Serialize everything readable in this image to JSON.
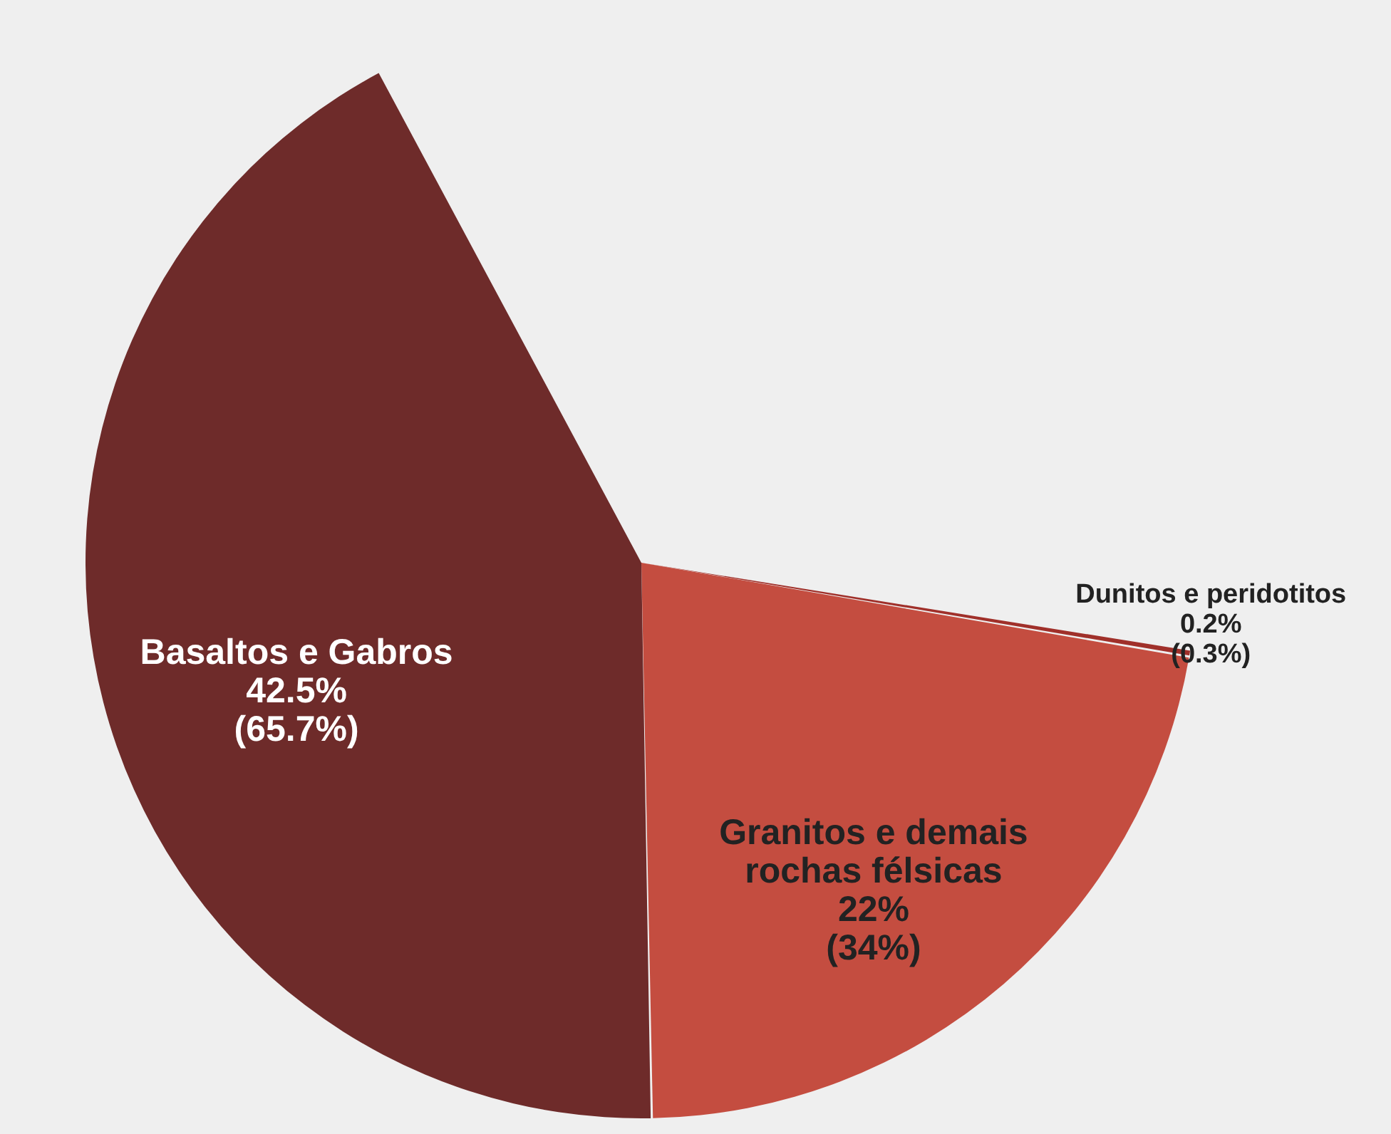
{
  "chart_data": {
    "type": "pie",
    "categories": [
      "Dunitos e peridotitos",
      "Granitos e  demais rochas félsicas",
      "Basaltos e Gabros"
    ],
    "values": [
      0.2,
      22,
      42.5
    ],
    "colors": [
      "#a0302a",
      "#c44d40",
      "#6e2b2a"
    ],
    "value_labels": [
      "0.2%\n(0.3%)",
      "22%\n(34%)",
      "42.5%\n(65.7%)"
    ]
  }
}
